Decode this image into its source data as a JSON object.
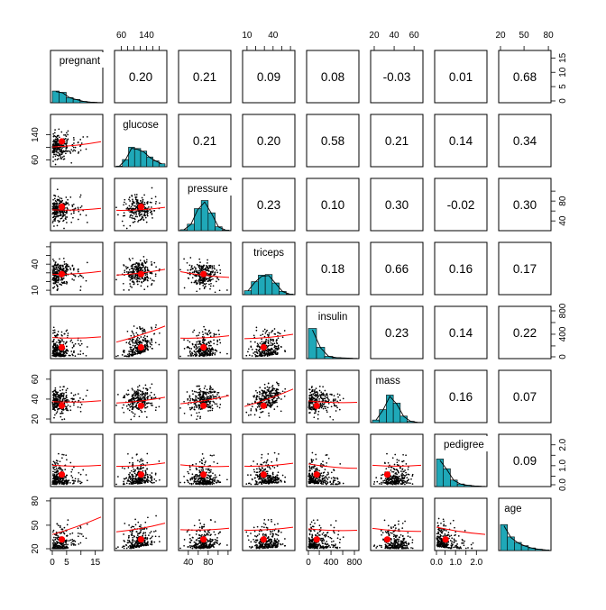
{
  "chart_data": {
    "type": "scatter-matrix",
    "variables": [
      "pregnant",
      "glucose",
      "pressure",
      "triceps",
      "insulin",
      "mass",
      "pedigree",
      "age"
    ],
    "ranges": {
      "pregnant": [
        0,
        17
      ],
      "glucose": [
        44,
        199
      ],
      "pressure": [
        24,
        122
      ],
      "triceps": [
        7,
        63
      ],
      "insulin": [
        14,
        846
      ],
      "mass": [
        18.2,
        67.1
      ],
      "pedigree": [
        0.085,
        2.42
      ],
      "age": [
        21,
        81
      ]
    },
    "means": {
      "pregnant": 3.3,
      "glucose": 122.6,
      "pressure": 70.7,
      "triceps": 29.1,
      "insulin": 156.1,
      "mass": 33.1,
      "pedigree": 0.52,
      "age": 30.9
    },
    "correlations": [
      [
        "",
        "0.20",
        "0.21",
        "0.09",
        "0.08",
        "-0.03",
        "0.01",
        "0.68"
      ],
      [
        "",
        "",
        "0.21",
        "0.20",
        "0.58",
        "0.21",
        "0.14",
        "0.34"
      ],
      [
        "",
        "",
        "",
        "0.23",
        "0.10",
        "0.30",
        "-0.02",
        "0.30"
      ],
      [
        "",
        "",
        "",
        "",
        "0.18",
        "0.66",
        "0.16",
        "0.17"
      ],
      [
        "",
        "",
        "",
        "",
        "",
        "0.23",
        "0.14",
        "0.22"
      ],
      [
        "",
        "",
        "",
        "",
        "",
        "",
        "0.16",
        "0.07"
      ],
      [
        "",
        "",
        "",
        "",
        "",
        "",
        "",
        "0.09"
      ],
      [
        "",
        "",
        "",
        "",
        "",
        "",
        "",
        ""
      ]
    ],
    "histograms": {
      "pregnant": [
        0.36,
        0.32,
        0.16,
        0.1,
        0.04,
        0.02,
        0.01
      ],
      "glucose": [
        0.02,
        0.22,
        0.6,
        0.56,
        0.48,
        0.3,
        0.18,
        0.09
      ],
      "pressure": [
        0.03,
        0.2,
        0.68,
        0.93,
        0.55,
        0.12,
        0.02
      ],
      "triceps": [
        0.12,
        0.4,
        0.6,
        0.62,
        0.36,
        0.1,
        0.02
      ],
      "insulin": [
        0.93,
        0.35,
        0.07,
        0.03,
        0.02,
        0.01
      ],
      "mass": [
        0.08,
        0.4,
        0.85,
        0.6,
        0.2,
        0.04,
        0.01
      ],
      "pedigree": [
        0.85,
        0.55,
        0.2,
        0.08,
        0.04,
        0.02,
        0.01
      ],
      "age": [
        0.8,
        0.42,
        0.25,
        0.15,
        0.08,
        0.04,
        0.02
      ]
    },
    "trend_slopes": {
      "pregnant": {
        "glucose": 0.18,
        "pressure": 0.05,
        "triceps": 0.1,
        "insulin": 0.02,
        "mass": 0.03,
        "pedigree": 0.0,
        "age": 0.6
      },
      "glucose": {
        "pressure": 0.1,
        "triceps": 0.2,
        "insulin": 0.55,
        "mass": 0.2,
        "pedigree": 0.12,
        "age": 0.3
      },
      "pressure": {
        "triceps": -0.2,
        "insulin": 0.08,
        "mass": 0.28,
        "pedigree": -0.05,
        "age": 0.05
      },
      "triceps": {
        "insulin": 0.15,
        "mass": 0.6,
        "pedigree": 0.1,
        "age": 0.1
      },
      "insulin": {
        "mass": -0.05,
        "pedigree": -0.15,
        "age": -0.05
      },
      "mass": {
        "pedigree": 0.0,
        "age": -0.1
      },
      "pedigree": {
        "age": -0.25
      }
    },
    "axis_ticks": {
      "top": [
        {
          "col": 1,
          "values": [
            60,
            140
          ],
          "minor": [
            80,
            100,
            120,
            160,
            180
          ]
        },
        {
          "col": 3,
          "values": [
            10,
            40
          ],
          "minor": [
            20,
            30,
            50,
            60
          ]
        },
        {
          "col": 5,
          "values": [
            20,
            40,
            60
          ]
        },
        {
          "col": 7,
          "values": [
            20,
            50,
            80
          ]
        }
      ],
      "bottom": [
        {
          "col": 0,
          "values": [
            0,
            5,
            15
          ],
          "minor": [
            10
          ]
        },
        {
          "col": 2,
          "values": [
            40,
            80
          ],
          "minor": [
            60,
            100,
            120
          ]
        },
        {
          "col": 4,
          "values": [
            0,
            400,
            800
          ],
          "minor": [
            200,
            600
          ]
        },
        {
          "col": 6,
          "values": [
            0.0,
            1.0,
            2.0
          ],
          "minor": [
            0.5,
            1.5
          ]
        }
      ],
      "left": [
        {
          "row": 1,
          "values": [
            60,
            140
          ],
          "minor": [
            100
          ]
        },
        {
          "row": 3,
          "values": [
            10,
            40
          ],
          "minor": [
            20,
            30,
            50,
            60
          ]
        },
        {
          "row": 5,
          "values": [
            20,
            40,
            60
          ]
        },
        {
          "row": 7,
          "values": [
            20,
            50,
            80
          ]
        }
      ],
      "right": [
        {
          "row": 0,
          "values": [
            0,
            5,
            10,
            15
          ]
        },
        {
          "row": 2,
          "values": [
            40,
            80
          ],
          "minor": [
            60,
            100
          ]
        },
        {
          "row": 4,
          "values": [
            0,
            400,
            800
          ],
          "minor": [
            200,
            600
          ]
        },
        {
          "row": 6,
          "values": [
            0.0,
            1.0,
            2.0
          ],
          "minor": [
            0.5,
            1.5
          ]
        }
      ]
    },
    "colors": {
      "histogram_fill": "#1fa8b8",
      "points": "#000000",
      "smoother": "#ff0000",
      "mean_marker": "#ff0000",
      "panel_border": "#000000"
    }
  }
}
